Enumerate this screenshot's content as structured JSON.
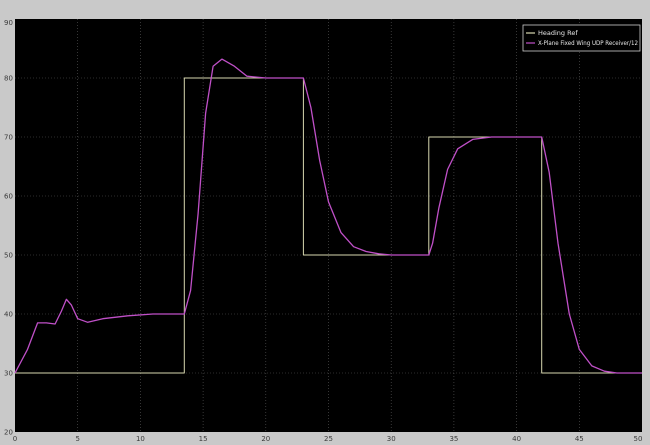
{
  "window": {
    "background": "#c9c9c9"
  },
  "chart_data": {
    "type": "line",
    "title": "",
    "xlabel": "",
    "ylabel": "",
    "xlim": [
      0,
      50
    ],
    "ylim": [
      20,
      90
    ],
    "xticks": [
      0,
      5,
      10,
      15,
      20,
      25,
      30,
      35,
      40,
      45,
      50
    ],
    "yticks": [
      20,
      30,
      40,
      50,
      60,
      70,
      80,
      90
    ],
    "grid": true,
    "legend_position": "top-right",
    "plot_background": "#000000",
    "series": [
      {
        "name": "Heading Ref",
        "color": "#d8d8b0",
        "step": true,
        "x": [
          0,
          13.5,
          13.5,
          23,
          23,
          33,
          33,
          42,
          42,
          50
        ],
        "y": [
          30,
          30,
          80,
          80,
          50,
          50,
          70,
          70,
          30,
          30
        ]
      },
      {
        "name": "X-Plane Fixed Wing UDP Receiver/12",
        "color": "#c050c8",
        "step": false,
        "x": [
          0,
          1,
          1.8,
          2.5,
          3.2,
          3.7,
          4.1,
          4.5,
          5,
          5.8,
          7,
          9,
          11,
          13.5,
          14,
          14.6,
          15.2,
          15.8,
          16.5,
          17.5,
          18.5,
          20,
          23,
          23.6,
          24.3,
          25,
          26,
          27,
          28,
          29,
          30,
          31,
          33,
          33.3,
          33.8,
          34.5,
          35.3,
          36.5,
          38,
          40,
          42,
          42.6,
          43.3,
          44.2,
          45,
          46,
          47,
          48,
          50
        ],
        "y": [
          30,
          34,
          38.5,
          38.5,
          38.3,
          40.5,
          42.5,
          41.5,
          39.2,
          38.6,
          39.2,
          39.7,
          40,
          40,
          44,
          57,
          74,
          82,
          83.2,
          82,
          80.3,
          80,
          80,
          75,
          66,
          59,
          53.8,
          51.4,
          50.6,
          50.2,
          50,
          50,
          50,
          52,
          58,
          64.5,
          68,
          69.6,
          70,
          70,
          70,
          64,
          52,
          40,
          34,
          31.2,
          30.3,
          30,
          30
        ]
      }
    ]
  }
}
